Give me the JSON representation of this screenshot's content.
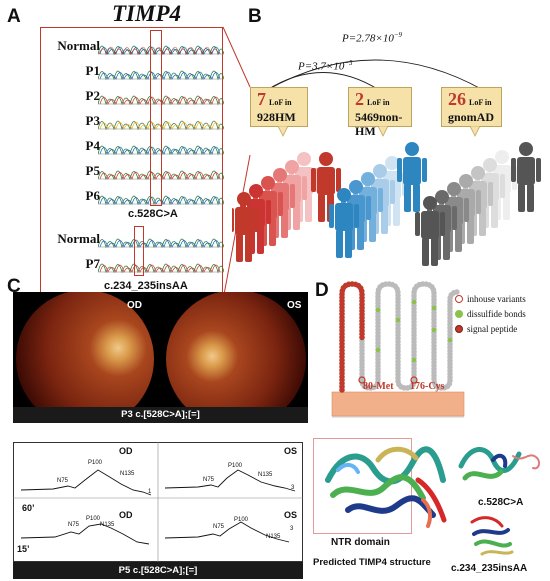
{
  "panel_a": {
    "letter": "A",
    "gene": "TIMP4",
    "rows": [
      "Normal",
      "P1",
      "P2",
      "P3",
      "P4",
      "P5",
      "P6"
    ],
    "mutation1": "c.528C>A",
    "rows2": [
      "Normal",
      "P7"
    ],
    "mutation2": "c.234_235insAA"
  },
  "panel_b": {
    "letter": "B",
    "p_top": "P=2.78×10",
    "p_top_exp": "−9",
    "p_mid": "P=3.7×10",
    "p_mid_exp": "−5",
    "callouts": [
      {
        "count": "7",
        "lof": "LoF in",
        "group": "928HM"
      },
      {
        "count": "2",
        "lof": "LoF in",
        "group": "5469non-HM"
      },
      {
        "count": "26",
        "lof": "LoF in",
        "group": "gnomAD"
      }
    ]
  },
  "panel_c": {
    "letter": "C",
    "od": "OD",
    "os": "OS",
    "fundus_caption": "P3 c.[528C>A];[=]",
    "erg_caption": "P5 c.[528C>A];[=]",
    "erg_times": [
      "60’",
      "15’"
    ],
    "waves": [
      "N75",
      "P100",
      "N135"
    ],
    "end_num": "1",
    "end_num2": "3"
  },
  "panel_d": {
    "letter": "D",
    "legend": [
      "inhouse variants",
      "dissulfide bonds",
      "signal peptide"
    ],
    "res1": "80-Met",
    "res2": "176-Cys",
    "ntr": "NTR domain",
    "predicted": "Predicted TIMP4 structure",
    "mut1": "c.528C>A",
    "mut2": "c.234_235insAA"
  },
  "colors": {
    "red": "#c0392b",
    "blue": "#2e86c1",
    "gray": "#555555",
    "callout": "#f6e2a9",
    "green_dot": "#8bc34a"
  }
}
